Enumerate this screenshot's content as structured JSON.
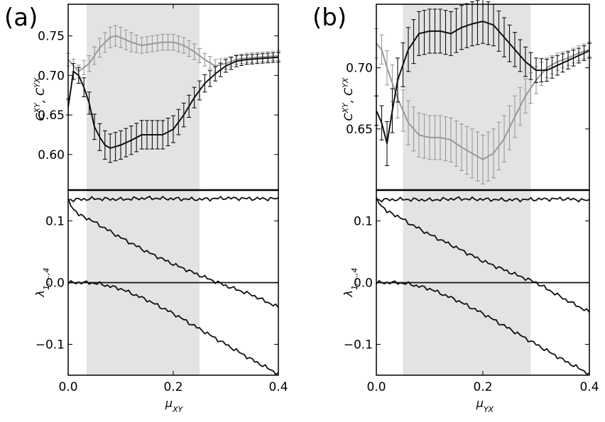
{
  "chart_data": [
    {
      "type": "line",
      "panel": "(a)",
      "xlabel": "μXY",
      "x_ticks": [
        "0.0",
        "0.2",
        "0.4"
      ],
      "xlim": [
        0,
        0.4
      ],
      "shaded_region": [
        0.035,
        0.25
      ],
      "top": {
        "ylabel": "CXY, CYX",
        "y_ticks": [
          "0.60",
          "0.65",
          "0.70",
          "0.75"
        ],
        "ylim": [
          0.555,
          0.79
        ],
        "series": [
          {
            "color": "#999999",
            "error_bars": true,
            "x": [
              0.0,
              0.02,
              0.04,
              0.06,
              0.08,
              0.09,
              0.1,
              0.12,
              0.14,
              0.16,
              0.18,
              0.2,
              0.22,
              0.24,
              0.26,
              0.28,
              0.3,
              0.32,
              0.34,
              0.36,
              0.38,
              0.4
            ],
            "y": [
              0.72,
              0.705,
              0.715,
              0.735,
              0.748,
              0.75,
              0.748,
              0.742,
              0.738,
              0.74,
              0.742,
              0.742,
              0.738,
              0.73,
              0.72,
              0.712,
              0.715,
              0.72,
              0.722,
              0.723,
              0.724,
              0.725
            ],
            "err": [
              0.008,
              0.008,
              0.01,
              0.012,
              0.013,
              0.013,
              0.013,
              0.012,
              0.01,
              0.01,
              0.01,
              0.01,
              0.01,
              0.01,
              0.008,
              0.008,
              0.007,
              0.006,
              0.006,
              0.006,
              0.006,
              0.006
            ]
          },
          {
            "color": "#111111",
            "error_bars": true,
            "x": [
              0.0,
              0.01,
              0.02,
              0.03,
              0.04,
              0.05,
              0.06,
              0.07,
              0.08,
              0.1,
              0.12,
              0.14,
              0.16,
              0.18,
              0.2,
              0.22,
              0.24,
              0.26,
              0.28,
              0.3,
              0.32,
              0.34,
              0.36,
              0.38,
              0.4
            ],
            "y": [
              0.66,
              0.705,
              0.7,
              0.685,
              0.665,
              0.635,
              0.622,
              0.612,
              0.608,
              0.612,
              0.618,
              0.625,
              0.625,
              0.625,
              0.632,
              0.65,
              0.672,
              0.69,
              0.702,
              0.712,
              0.718,
              0.72,
              0.721,
              0.722,
              0.723
            ],
            "err": [
              0.01,
              0.01,
              0.01,
              0.012,
              0.014,
              0.016,
              0.017,
              0.018,
              0.018,
              0.018,
              0.018,
              0.018,
              0.018,
              0.018,
              0.017,
              0.015,
              0.013,
              0.011,
              0.009,
              0.008,
              0.007,
              0.006,
              0.006,
              0.006,
              0.006
            ]
          }
        ]
      },
      "bottom": {
        "ylabel": "λ1,...,4",
        "y_ticks": [
          "−0.1",
          "0.0",
          "0.1"
        ],
        "ylim": [
          -0.15,
          0.15
        ],
        "series": [
          {
            "color": "#111111",
            "x": [
              0.0,
              0.05,
              0.1,
              0.15,
              0.2,
              0.25,
              0.3,
              0.35,
              0.4
            ],
            "y": [
              0.134,
              0.136,
              0.135,
              0.137,
              0.136,
              0.135,
              0.137,
              0.136,
              0.136
            ]
          },
          {
            "color": "#111111",
            "x": [
              0.0,
              0.01,
              0.02,
              0.04,
              0.06,
              0.1,
              0.15,
              0.2,
              0.25,
              0.3,
              0.35,
              0.4
            ],
            "y": [
              0.133,
              0.12,
              0.11,
              0.103,
              0.093,
              0.073,
              0.05,
              0.03,
              0.012,
              -0.005,
              -0.02,
              -0.04
            ]
          },
          {
            "color": "#111111",
            "x": [
              0.0,
              0.05,
              0.1,
              0.15,
              0.2,
              0.25,
              0.3,
              0.35,
              0.4
            ],
            "y": [
              0.0,
              0.0,
              0.0,
              0.0,
              0.0,
              0.0,
              0.0,
              0.0,
              0.0
            ]
          },
          {
            "color": "#111111",
            "x": [
              0.0,
              0.04,
              0.06,
              0.1,
              0.15,
              0.2,
              0.25,
              0.3,
              0.35,
              0.4
            ],
            "y": [
              0.0,
              0.0,
              -0.002,
              -0.01,
              -0.028,
              -0.05,
              -0.075,
              -0.1,
              -0.125,
              -0.148
            ]
          }
        ]
      }
    },
    {
      "type": "line",
      "panel": "(b)",
      "xlabel": "μYX",
      "x_ticks": [
        "0.0",
        "0.2",
        "0.4"
      ],
      "xlim": [
        0,
        0.4
      ],
      "shaded_region": [
        0.05,
        0.29
      ],
      "top": {
        "ylabel": "CXY, CYX",
        "y_ticks": [
          "0.65",
          "0.70"
        ],
        "ylim": [
          0.6,
          0.752
        ],
        "series": [
          {
            "color": "#999999",
            "error_bars": true,
            "x": [
              0.0,
              0.01,
              0.02,
              0.04,
              0.06,
              0.08,
              0.1,
              0.12,
              0.14,
              0.16,
              0.18,
              0.2,
              0.22,
              0.24,
              0.26,
              0.28,
              0.3,
              0.32,
              0.34,
              0.36,
              0.38,
              0.4
            ],
            "y": [
              0.72,
              0.715,
              0.7,
              0.675,
              0.655,
              0.645,
              0.643,
              0.643,
              0.641,
              0.635,
              0.63,
              0.625,
              0.63,
              0.642,
              0.66,
              0.677,
              0.69,
              0.7,
              0.705,
              0.708,
              0.712,
              0.715
            ],
            "err": [
              0.012,
              0.012,
              0.014,
              0.016,
              0.018,
              0.018,
              0.018,
              0.018,
              0.018,
              0.019,
              0.02,
              0.02,
              0.02,
              0.019,
              0.017,
              0.014,
              0.011,
              0.008,
              0.007,
              0.006,
              0.006,
              0.006
            ]
          },
          {
            "color": "#111111",
            "error_bars": true,
            "x": [
              0.0,
              0.01,
              0.02,
              0.03,
              0.04,
              0.06,
              0.08,
              0.1,
              0.12,
              0.14,
              0.16,
              0.18,
              0.2,
              0.22,
              0.24,
              0.26,
              0.28,
              0.3,
              0.32,
              0.34,
              0.36,
              0.38,
              0.4
            ],
            "y": [
              0.665,
              0.655,
              0.638,
              0.665,
              0.69,
              0.715,
              0.728,
              0.73,
              0.73,
              0.728,
              0.733,
              0.736,
              0.738,
              0.735,
              0.725,
              0.715,
              0.705,
              0.698,
              0.698,
              0.702,
              0.706,
              0.71,
              0.714
            ],
            "err": [
              0.012,
              0.014,
              0.018,
              0.018,
              0.018,
              0.018,
              0.018,
              0.018,
              0.018,
              0.018,
              0.018,
              0.018,
              0.018,
              0.017,
              0.016,
              0.014,
              0.012,
              0.01,
              0.009,
              0.008,
              0.007,
              0.006,
              0.006
            ]
          }
        ]
      },
      "bottom": {
        "ylabel": "λ1,...,4",
        "y_ticks": [
          "−0.1",
          "0.0",
          "0.1"
        ],
        "ylim": [
          -0.15,
          0.15
        ],
        "series": [
          {
            "color": "#111111",
            "x": [
              0.0,
              0.05,
              0.1,
              0.15,
              0.2,
              0.25,
              0.3,
              0.35,
              0.4
            ],
            "y": [
              0.134,
              0.135,
              0.134,
              0.136,
              0.135,
              0.134,
              0.135,
              0.136,
              0.133
            ]
          },
          {
            "color": "#111111",
            "x": [
              0.0,
              0.01,
              0.02,
              0.04,
              0.06,
              0.1,
              0.15,
              0.2,
              0.25,
              0.3,
              0.35,
              0.4
            ],
            "y": [
              0.135,
              0.125,
              0.115,
              0.108,
              0.097,
              0.078,
              0.057,
              0.035,
              0.017,
              0.0,
              -0.025,
              -0.048
            ]
          },
          {
            "color": "#111111",
            "x": [
              0.0,
              0.05,
              0.1,
              0.15,
              0.2,
              0.25,
              0.3,
              0.35,
              0.4
            ],
            "y": [
              0.0,
              0.0,
              0.0,
              0.0,
              0.0,
              0.0,
              0.0,
              0.0,
              0.0
            ]
          },
          {
            "color": "#111111",
            "x": [
              0.0,
              0.04,
              0.06,
              0.1,
              0.15,
              0.2,
              0.25,
              0.3,
              0.35,
              0.4
            ],
            "y": [
              0.0,
              0.0,
              -0.002,
              -0.01,
              -0.028,
              -0.05,
              -0.075,
              -0.1,
              -0.125,
              -0.148
            ]
          }
        ]
      }
    }
  ]
}
